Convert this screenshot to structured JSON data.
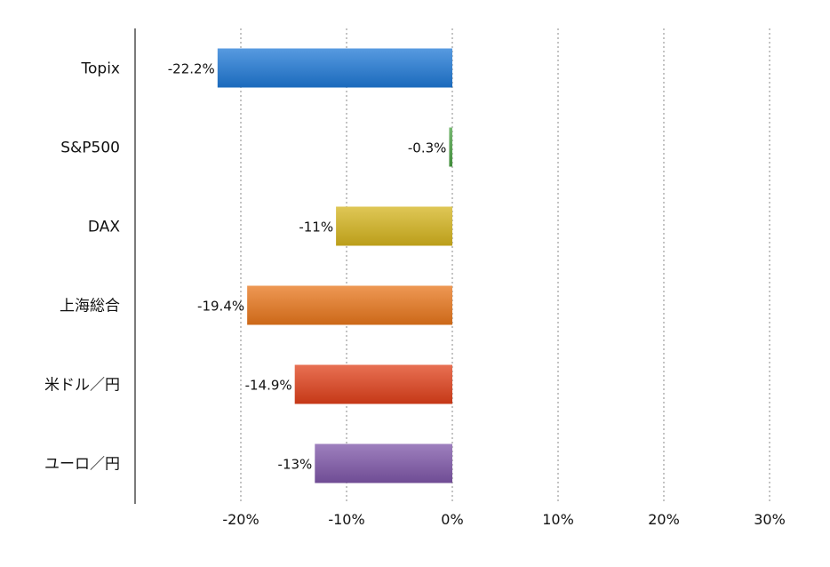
{
  "chart_data": {
    "type": "bar",
    "orientation": "horizontal",
    "categories": [
      "Topix",
      "S&P500",
      "DAX",
      "上海総合",
      "米ドル／円",
      "ユーロ／円"
    ],
    "values": [
      -22.2,
      -0.3,
      -11,
      -19.4,
      -14.9,
      -13
    ],
    "data_labels": [
      "-22.2%",
      "-0.3%",
      "-11%",
      "-19.4%",
      "-14.9%",
      "-13%"
    ],
    "colors": [
      "#1f78d6",
      "#4aa043",
      "#d4b41e",
      "#e8761b",
      "#e0401a",
      "#7e56a8"
    ],
    "xlim": [
      -30,
      30
    ],
    "x_ticks": [
      -20,
      -10,
      0,
      10,
      20,
      30
    ],
    "x_tick_labels": [
      "-20%",
      "-10%",
      "0%",
      "10%",
      "20%",
      "30%"
    ],
    "grid": "vertical-dotted",
    "legend": "none"
  }
}
